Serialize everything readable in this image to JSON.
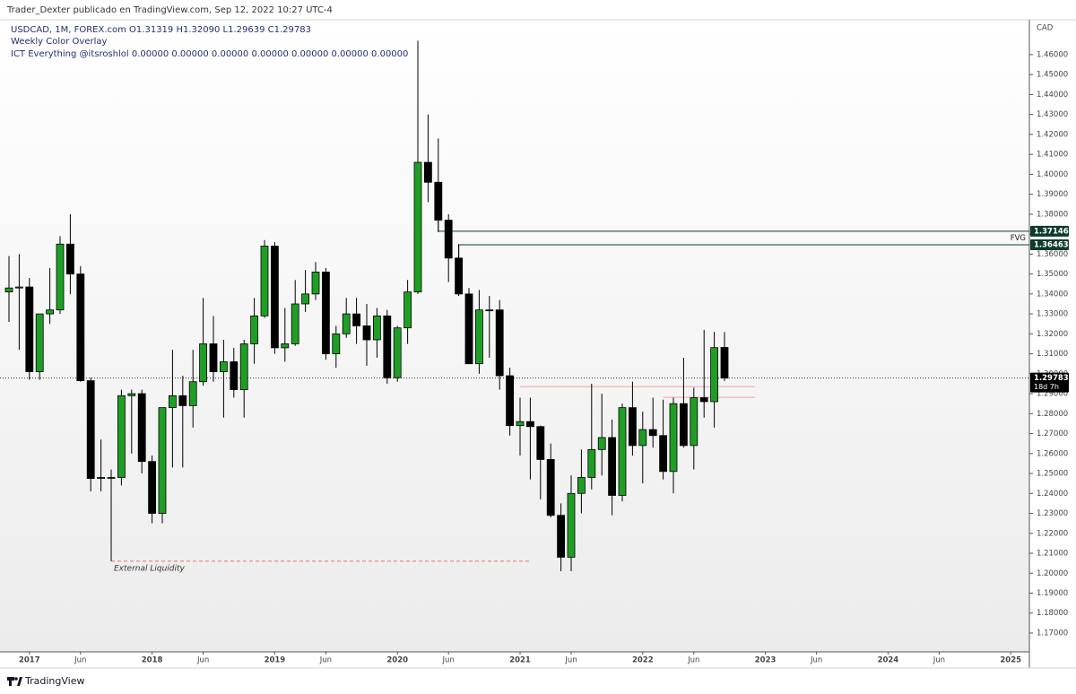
{
  "chart_data": {
    "type": "candlestick",
    "title": "Trader_Dexter publicado en TradingView.com, Sep 12, 2022 10:27 UTC-4",
    "legend_lines": [
      "USDCAD, 1M, FOREX.com  O1.31319  H1.32090  L1.29639  C1.29783",
      "Weekly Color Overlay",
      "ICT Everything @itsroshlol  0.00000  0.00000  0.00000  0.00000  0.00000  0.00000  0.00000"
    ],
    "currency": "CAD",
    "up_color": "#1f9e26",
    "down_color": "#000000",
    "x": [
      "2016-11",
      "2016-12",
      "2017-01",
      "2017-02",
      "2017-03",
      "2017-04",
      "2017-05",
      "2017-06",
      "2017-07",
      "2017-08",
      "2017-09",
      "2017-10",
      "2017-11",
      "2017-12",
      "2018-01",
      "2018-02",
      "2018-03",
      "2018-04",
      "2018-05",
      "2018-06",
      "2018-07",
      "2018-08",
      "2018-09",
      "2018-10",
      "2018-11",
      "2018-12",
      "2019-01",
      "2019-02",
      "2019-03",
      "2019-04",
      "2019-05",
      "2019-06",
      "2019-07",
      "2019-08",
      "2019-09",
      "2019-10",
      "2019-11",
      "2019-12",
      "2020-01",
      "2020-02",
      "2020-03",
      "2020-04",
      "2020-05",
      "2020-06",
      "2020-07",
      "2020-08",
      "2020-09",
      "2020-10",
      "2020-11",
      "2020-12",
      "2021-01",
      "2021-02",
      "2021-03",
      "2021-04",
      "2021-05",
      "2021-06",
      "2021-07",
      "2021-08",
      "2021-09",
      "2021-10",
      "2021-11",
      "2021-12",
      "2022-01",
      "2022-02",
      "2022-03",
      "2022-04",
      "2022-05",
      "2022-06",
      "2022-07",
      "2022-08",
      "2022-09"
    ],
    "open": [
      1.341,
      1.343,
      1.3435,
      1.301,
      1.33,
      1.332,
      1.365,
      1.35,
      1.2965,
      1.2475,
      1.248,
      1.248,
      1.289,
      1.29,
      1.256,
      1.23,
      1.283,
      1.289,
      1.284,
      1.296,
      1.315,
      1.301,
      1.306,
      1.292,
      1.315,
      1.329,
      1.364,
      1.313,
      1.315,
      1.335,
      1.34,
      1.351,
      1.31,
      1.32,
      1.33,
      1.324,
      1.317,
      1.329,
      1.298,
      1.323,
      1.341,
      1.406,
      1.396,
      1.377,
      1.358,
      1.34,
      1.305,
      1.332,
      1.332,
      1.299,
      1.274,
      1.276,
      1.2735,
      1.257,
      1.229,
      1.208,
      1.24,
      1.248,
      1.262,
      1.268,
      1.239,
      1.283,
      1.264,
      1.272,
      1.269,
      1.251,
      1.285,
      1.264,
      1.288,
      1.286,
      1.31319
    ],
    "high": [
      1.359,
      1.36,
      1.348,
      1.329,
      1.353,
      1.369,
      1.38,
      1.354,
      1.298,
      1.267,
      1.252,
      1.292,
      1.292,
      1.292,
      1.259,
      1.283,
      1.312,
      1.299,
      1.312,
      1.338,
      1.329,
      1.317,
      1.313,
      1.317,
      1.338,
      1.367,
      1.366,
      1.333,
      1.347,
      1.352,
      1.356,
      1.353,
      1.324,
      1.338,
      1.338,
      1.335,
      1.333,
      1.332,
      1.324,
      1.347,
      1.467,
      1.43,
      1.418,
      1.38,
      1.365,
      1.343,
      1.342,
      1.339,
      1.337,
      1.303,
      1.288,
      1.288,
      1.274,
      1.265,
      1.235,
      1.249,
      1.262,
      1.295,
      1.29,
      1.277,
      1.285,
      1.296,
      1.281,
      1.288,
      1.287,
      1.288,
      1.308,
      1.293,
      1.322,
      1.321,
      1.3209
    ],
    "low": [
      1.326,
      1.312,
      1.297,
      1.297,
      1.325,
      1.33,
      1.34,
      1.296,
      1.241,
      1.241,
      1.206,
      1.244,
      1.26,
      1.25,
      1.225,
      1.225,
      1.253,
      1.253,
      1.273,
      1.294,
      1.296,
      1.278,
      1.288,
      1.278,
      1.305,
      1.328,
      1.31,
      1.306,
      1.314,
      1.331,
      1.337,
      1.307,
      1.303,
      1.318,
      1.315,
      1.304,
      1.308,
      1.295,
      1.296,
      1.315,
      1.34,
      1.386,
      1.371,
      1.346,
      1.339,
      1.305,
      1.3,
      1.308,
      1.292,
      1.269,
      1.259,
      1.247,
      1.237,
      1.228,
      1.201,
      1.201,
      1.23,
      1.242,
      1.249,
      1.229,
      1.236,
      1.259,
      1.245,
      1.263,
      1.247,
      1.24,
      1.263,
      1.252,
      1.278,
      1.273,
      1.29639
    ],
    "close": [
      1.343,
      1.3435,
      1.301,
      1.33,
      1.332,
      1.365,
      1.35,
      1.2965,
      1.2475,
      1.248,
      1.248,
      1.289,
      1.29,
      1.256,
      1.23,
      1.283,
      1.289,
      1.284,
      1.296,
      1.315,
      1.301,
      1.306,
      1.292,
      1.315,
      1.329,
      1.364,
      1.313,
      1.315,
      1.335,
      1.34,
      1.351,
      1.31,
      1.32,
      1.33,
      1.324,
      1.317,
      1.329,
      1.298,
      1.323,
      1.341,
      1.406,
      1.396,
      1.377,
      1.358,
      1.34,
      1.305,
      1.332,
      1.332,
      1.299,
      1.274,
      1.276,
      1.2735,
      1.257,
      1.229,
      1.208,
      1.24,
      1.248,
      1.262,
      1.268,
      1.239,
      1.283,
      1.264,
      1.272,
      1.269,
      1.251,
      1.285,
      1.264,
      1.288,
      1.286,
      1.3131,
      1.29783
    ],
    "ylim": [
      1.161,
      1.4775
    ],
    "yticks": [
      {
        "value": 1.17,
        "label": "1.17000"
      },
      {
        "value": 1.18,
        "label": "1.18000"
      },
      {
        "value": 1.19,
        "label": "1.19000"
      },
      {
        "value": 1.2,
        "label": "1.20000"
      },
      {
        "value": 1.21,
        "label": "1.21000"
      },
      {
        "value": 1.22,
        "label": "1.22000"
      },
      {
        "value": 1.23,
        "label": "1.23000"
      },
      {
        "value": 1.24,
        "label": "1.24000"
      },
      {
        "value": 1.25,
        "label": "1.25000"
      },
      {
        "value": 1.26,
        "label": "1.26000"
      },
      {
        "value": 1.27,
        "label": "1.27000"
      },
      {
        "value": 1.28,
        "label": "1.28000"
      },
      {
        "value": 1.29,
        "label": "1.29000"
      },
      {
        "value": 1.3,
        "label": "1.30000"
      },
      {
        "value": 1.31,
        "label": "1.31000"
      },
      {
        "value": 1.32,
        "label": "1.32000"
      },
      {
        "value": 1.33,
        "label": "1.33000"
      },
      {
        "value": 1.34,
        "label": "1.34000"
      },
      {
        "value": 1.35,
        "label": "1.35000"
      },
      {
        "value": 1.36,
        "label": "1.36000"
      },
      {
        "value": 1.37,
        "label": "1.37000"
      },
      {
        "value": 1.38,
        "label": "1.38000"
      },
      {
        "value": 1.39,
        "label": "1.39000"
      },
      {
        "value": 1.4,
        "label": "1.40000"
      },
      {
        "value": 1.41,
        "label": "1.41000"
      },
      {
        "value": 1.42,
        "label": "1.42000"
      },
      {
        "value": 1.43,
        "label": "1.43000"
      },
      {
        "value": 1.44,
        "label": "1.44000"
      },
      {
        "value": 1.45,
        "label": "1.45000"
      },
      {
        "value": 1.46,
        "label": "1.46000"
      }
    ],
    "xticks": [
      {
        "value": "2017-01",
        "label": "2017"
      },
      {
        "value": "2017-06",
        "label": "Jun"
      },
      {
        "value": "2018-01",
        "label": "2018"
      },
      {
        "value": "2018-06",
        "label": "Jun"
      },
      {
        "value": "2019-01",
        "label": "2019"
      },
      {
        "value": "2019-06",
        "label": "Jun"
      },
      {
        "value": "2020-01",
        "label": "2020"
      },
      {
        "value": "2020-06",
        "label": "Jun"
      },
      {
        "value": "2021-01",
        "label": "2021"
      },
      {
        "value": "2021-06",
        "label": "Jun"
      },
      {
        "value": "2022-01",
        "label": "2022"
      },
      {
        "value": "2022-06",
        "label": "Jun"
      },
      {
        "value": "2023-01",
        "label": "2023"
      },
      {
        "value": "2023-06",
        "label": "Jun"
      },
      {
        "value": "2024-01",
        "label": "2024"
      },
      {
        "value": "2024-06",
        "label": "Jun"
      },
      {
        "value": "2025-01",
        "label": "2025"
      }
    ],
    "fvg": {
      "label": "FVG",
      "top": 1.37146,
      "bottom": 1.36463,
      "top_from": "2020-05",
      "bottom_from": "2020-07",
      "color": "#0d3b2e"
    },
    "liquidity": {
      "label": "External Liquidity",
      "price": 1.206,
      "from": "2017-09",
      "to": "2021-02",
      "color": "#e57373"
    },
    "levels": [
      {
        "price": 1.2935,
        "from": "2021-01",
        "to": "2022-12"
      },
      {
        "price": 1.2882,
        "from": "2022-03",
        "to": "2022-12"
      }
    ],
    "last_price": 1.29783,
    "countdown": "18d 7h"
  },
  "footer": "TradingView"
}
